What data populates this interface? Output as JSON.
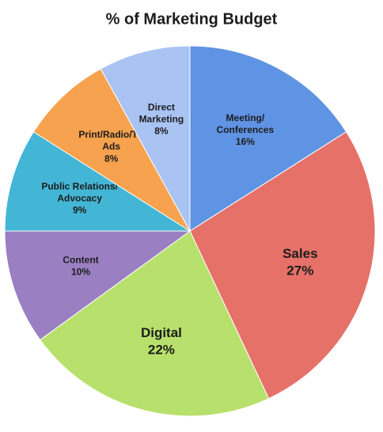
{
  "chart_data": {
    "type": "pie",
    "title": "% of Marketing Budget",
    "categories": [
      "Meeting/\nConferences",
      "Sales",
      "Digital",
      "Content",
      "Public Relations/\nAdvocacy",
      "Print/Radio/TV\nAds",
      "Direct\nMarketing"
    ],
    "values": [
      16,
      27,
      22,
      10,
      9,
      8,
      8
    ],
    "value_labels": [
      "16%",
      "27%",
      "22%",
      "10%",
      "9%",
      "8%",
      "8%"
    ],
    "colors": [
      "#5f93e3",
      "#e57169",
      "#b8e06c",
      "#9a7fc2",
      "#44b6d5",
      "#f6a24e",
      "#a9c3f3"
    ]
  }
}
